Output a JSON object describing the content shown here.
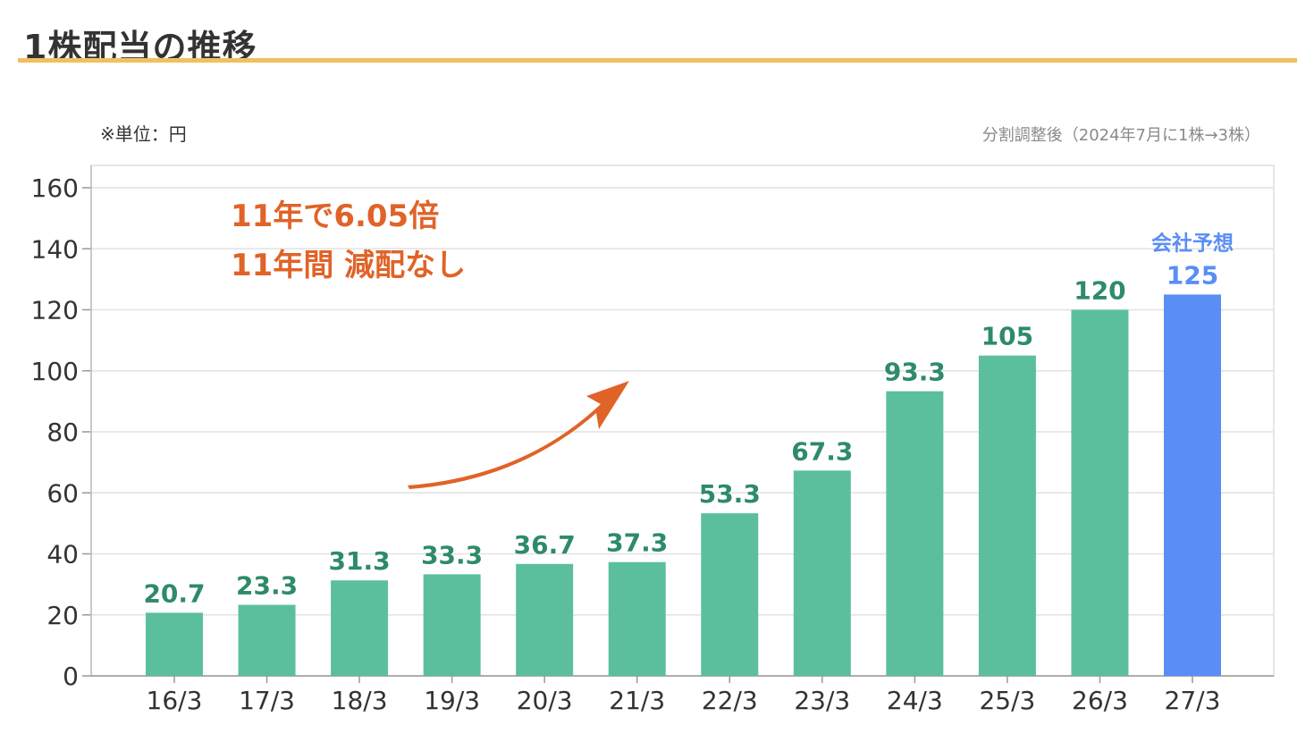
{
  "header": {
    "title": "1株配当の推移",
    "unit_label": "※単位：円",
    "note": "分割調整後（2024年7月に1株→3株）"
  },
  "annotation": {
    "line1": "11年で6.05倍",
    "line2": "11年間 減配なし"
  },
  "colors": {
    "actual": "#5bbf9e",
    "actual_label": "#2e8b68",
    "forecast": "#5a8ef5",
    "forecast_label": "#5a8ef5",
    "annotation": "#e06328",
    "title_rule": "#f0c060"
  },
  "chart_data": {
    "type": "bar",
    "categories": [
      "16/3",
      "17/3",
      "18/3",
      "19/3",
      "20/3",
      "21/3",
      "22/3",
      "23/3",
      "24/3",
      "25/3",
      "26/3",
      "27/3"
    ],
    "values": [
      20.7,
      23.3,
      31.3,
      33.3,
      36.7,
      37.3,
      53.3,
      67.3,
      93.3,
      105,
      120,
      125
    ],
    "value_labels": [
      "20.7",
      "23.3",
      "31.3",
      "33.3",
      "36.7",
      "37.3",
      "53.3",
      "67.3",
      "93.3",
      "105",
      "120",
      "125"
    ],
    "forecast_index": 11,
    "forecast_label": "会社予想",
    "ylim": [
      0,
      160
    ],
    "yticks": [
      0,
      20,
      40,
      60,
      80,
      100,
      120,
      140,
      160
    ],
    "grid": true
  }
}
